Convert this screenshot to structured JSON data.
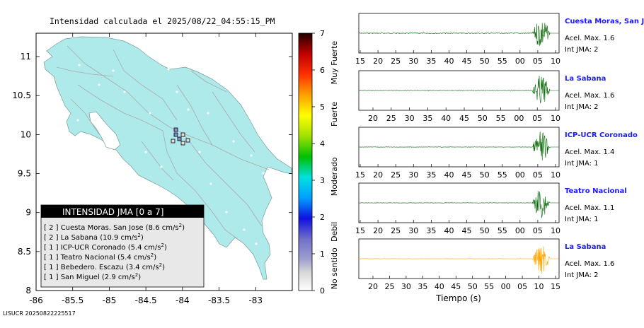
{
  "map": {
    "title": "Intensidad calculada el 2025/08/22_04:55:15_PM",
    "x_ticks": [
      "-86",
      "-85.5",
      "-85",
      "-84.5",
      "-84",
      "-83.5",
      "-83"
    ],
    "y_ticks": [
      "11",
      "10.5",
      "10",
      "9.5",
      "9",
      "8.5",
      "8"
    ],
    "colorbar": {
      "ticks": [
        "7",
        "6",
        "5",
        "4",
        "3",
        "2",
        "1",
        "0"
      ],
      "labels": [
        "Muy Fuerte",
        "Fuerte",
        "Moderado",
        "Debil",
        "No sentido"
      ]
    },
    "legend": {
      "title": "INTENSIDAD JMA [0 a 7]",
      "items": [
        {
          "jma": "[ 2 ]",
          "name": "Cuesta Moras. San Jose",
          "accel": "(8.6 cm/s",
          "sup": "2",
          "close": ")"
        },
        {
          "jma": "[ 2 ]",
          "name": "La Sabana",
          "accel": "(10.9 cm/s",
          "sup": "2",
          "close": ")"
        },
        {
          "jma": "[ 1 ]",
          "name": "ICP-UCR Coronado",
          "accel": "(5.4 cm/s",
          "sup": "2",
          "close": ")"
        },
        {
          "jma": "[ 1 ]",
          "name": "Teatro Nacional",
          "accel": "(5.4 cm/s",
          "sup": "2",
          "close": ")"
        },
        {
          "jma": "[ 1 ]",
          "name": "Bebedero. Escazu",
          "accel": "(3.4 cm/s",
          "sup": "2",
          "close": ")"
        },
        {
          "jma": "[ 1 ]",
          "name": "San Miguel",
          "accel": "(2.9 cm/s",
          "sup": "2",
          "close": ")"
        }
      ]
    },
    "footer": "LISUCR 20250822225517"
  },
  "chart_data": [
    {
      "type": "heatmap",
      "title": "Intensidad calculada el 2025/08/22_04:55:15_PM",
      "xlabel": "",
      "ylabel": "",
      "xlim": [
        -86,
        -82.5
      ],
      "ylim": [
        8,
        11.3
      ],
      "colorbar": {
        "range": [
          0,
          7
        ],
        "ticks": [
          0,
          1,
          2,
          3,
          4,
          5,
          6,
          7
        ]
      },
      "stations": [
        {
          "name": "Cuesta Moras. San Jose",
          "jma": 2
        },
        {
          "name": "La Sabana",
          "jma": 2
        },
        {
          "name": "ICP-UCR Coronado",
          "jma": 1
        },
        {
          "name": "Teatro Nacional",
          "jma": 1
        },
        {
          "name": "Bebedero. Escazu",
          "jma": 1
        },
        {
          "name": "San Miguel",
          "jma": 1
        }
      ]
    },
    {
      "type": "line",
      "xlabel": "Tiempo (s)",
      "series": [
        {
          "name": "Cuesta Moras, San Jose",
          "accel": "Acel. Max. 1.6",
          "int": "Int JMA: 2",
          "color": "#006400",
          "ticks": [
            "15",
            "20",
            "25",
            "30",
            "35",
            "40",
            "45",
            "50",
            "55",
            "00",
            "05",
            "10"
          ]
        },
        {
          "name": "La Sabana",
          "accel": "Acel. Max. 1.6",
          "int": "Int JMA: 2",
          "color": "#006400",
          "ticks": [
            "20",
            "25",
            "30",
            "35",
            "40",
            "45",
            "50",
            "55",
            "00",
            "05",
            "10"
          ]
        },
        {
          "name": "ICP-UCR Coronado",
          "accel": "Acel. Max. 1.4",
          "int": "Int JMA: 1",
          "color": "#006400",
          "ticks": [
            "15",
            "20",
            "25",
            "30",
            "35",
            "40",
            "45",
            "50",
            "55",
            "00",
            "05",
            "10"
          ]
        },
        {
          "name": "Teatro Nacional",
          "accel": "Acel. Max. 1.1",
          "int": "Int JMA: 1",
          "color": "#006400",
          "ticks": [
            "15",
            "20",
            "25",
            "30",
            "35",
            "40",
            "45",
            "50",
            "55",
            "00",
            "05",
            "10"
          ]
        },
        {
          "name": "La Sabana",
          "accel": "Acel. Max. 1.6",
          "int": "Int JMA: 2",
          "color": "#FFA500",
          "ticks": [
            "20",
            "25",
            "30",
            "35",
            "40",
            "45",
            "50",
            "55",
            "00",
            "05",
            "10",
            "15"
          ]
        }
      ]
    }
  ]
}
